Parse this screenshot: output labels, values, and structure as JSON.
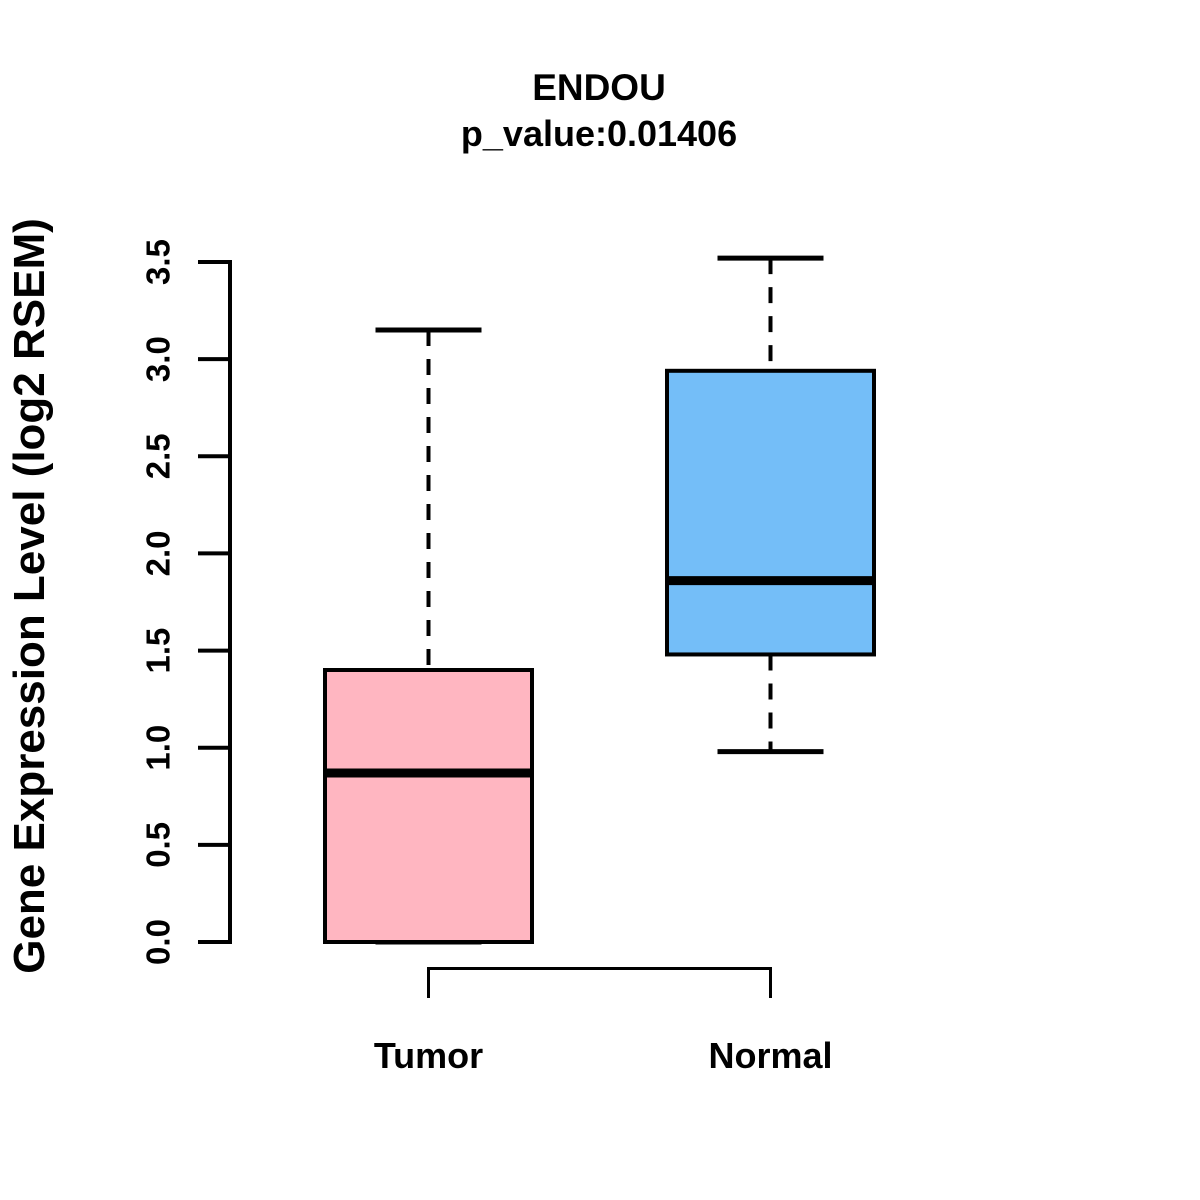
{
  "figure": {
    "title": "ENDOU",
    "subtitle": "p_value:0.01406",
    "y_axis_label": "Gene Expression Level (log2 RSEM)"
  },
  "chart_data": {
    "type": "boxplot",
    "title": "ENDOU",
    "subtitle": "p_value:0.01406",
    "xlabel": "",
    "ylabel": "Gene Expression Level (log2 RSEM)",
    "ylim": [
      0.0,
      3.5
    ],
    "yticks": [
      0.0,
      0.5,
      1.0,
      1.5,
      2.0,
      2.5,
      3.0,
      3.5
    ],
    "ytick_labels": [
      "0.0",
      "0.5",
      "1.0",
      "1.5",
      "2.0",
      "2.5",
      "3.0",
      "3.5"
    ],
    "grid": false,
    "legend": "none",
    "categories": [
      "Tumor",
      "Normal"
    ],
    "series": [
      {
        "name": "Tumor",
        "fill_color": "#FFB6C1",
        "border_color": "#000000",
        "lower_whisker": 0.0,
        "q1": 0.0,
        "median": 0.87,
        "q3": 1.4,
        "upper_whisker": 3.15
      },
      {
        "name": "Normal",
        "fill_color": "#74BEF8",
        "border_color": "#000000",
        "lower_whisker": 0.98,
        "q1": 1.48,
        "median": 1.86,
        "q3": 2.94,
        "upper_whisker": 3.52
      }
    ],
    "comparison_bracket": {
      "between": [
        "Tumor",
        "Normal"
      ],
      "side": "below"
    }
  }
}
